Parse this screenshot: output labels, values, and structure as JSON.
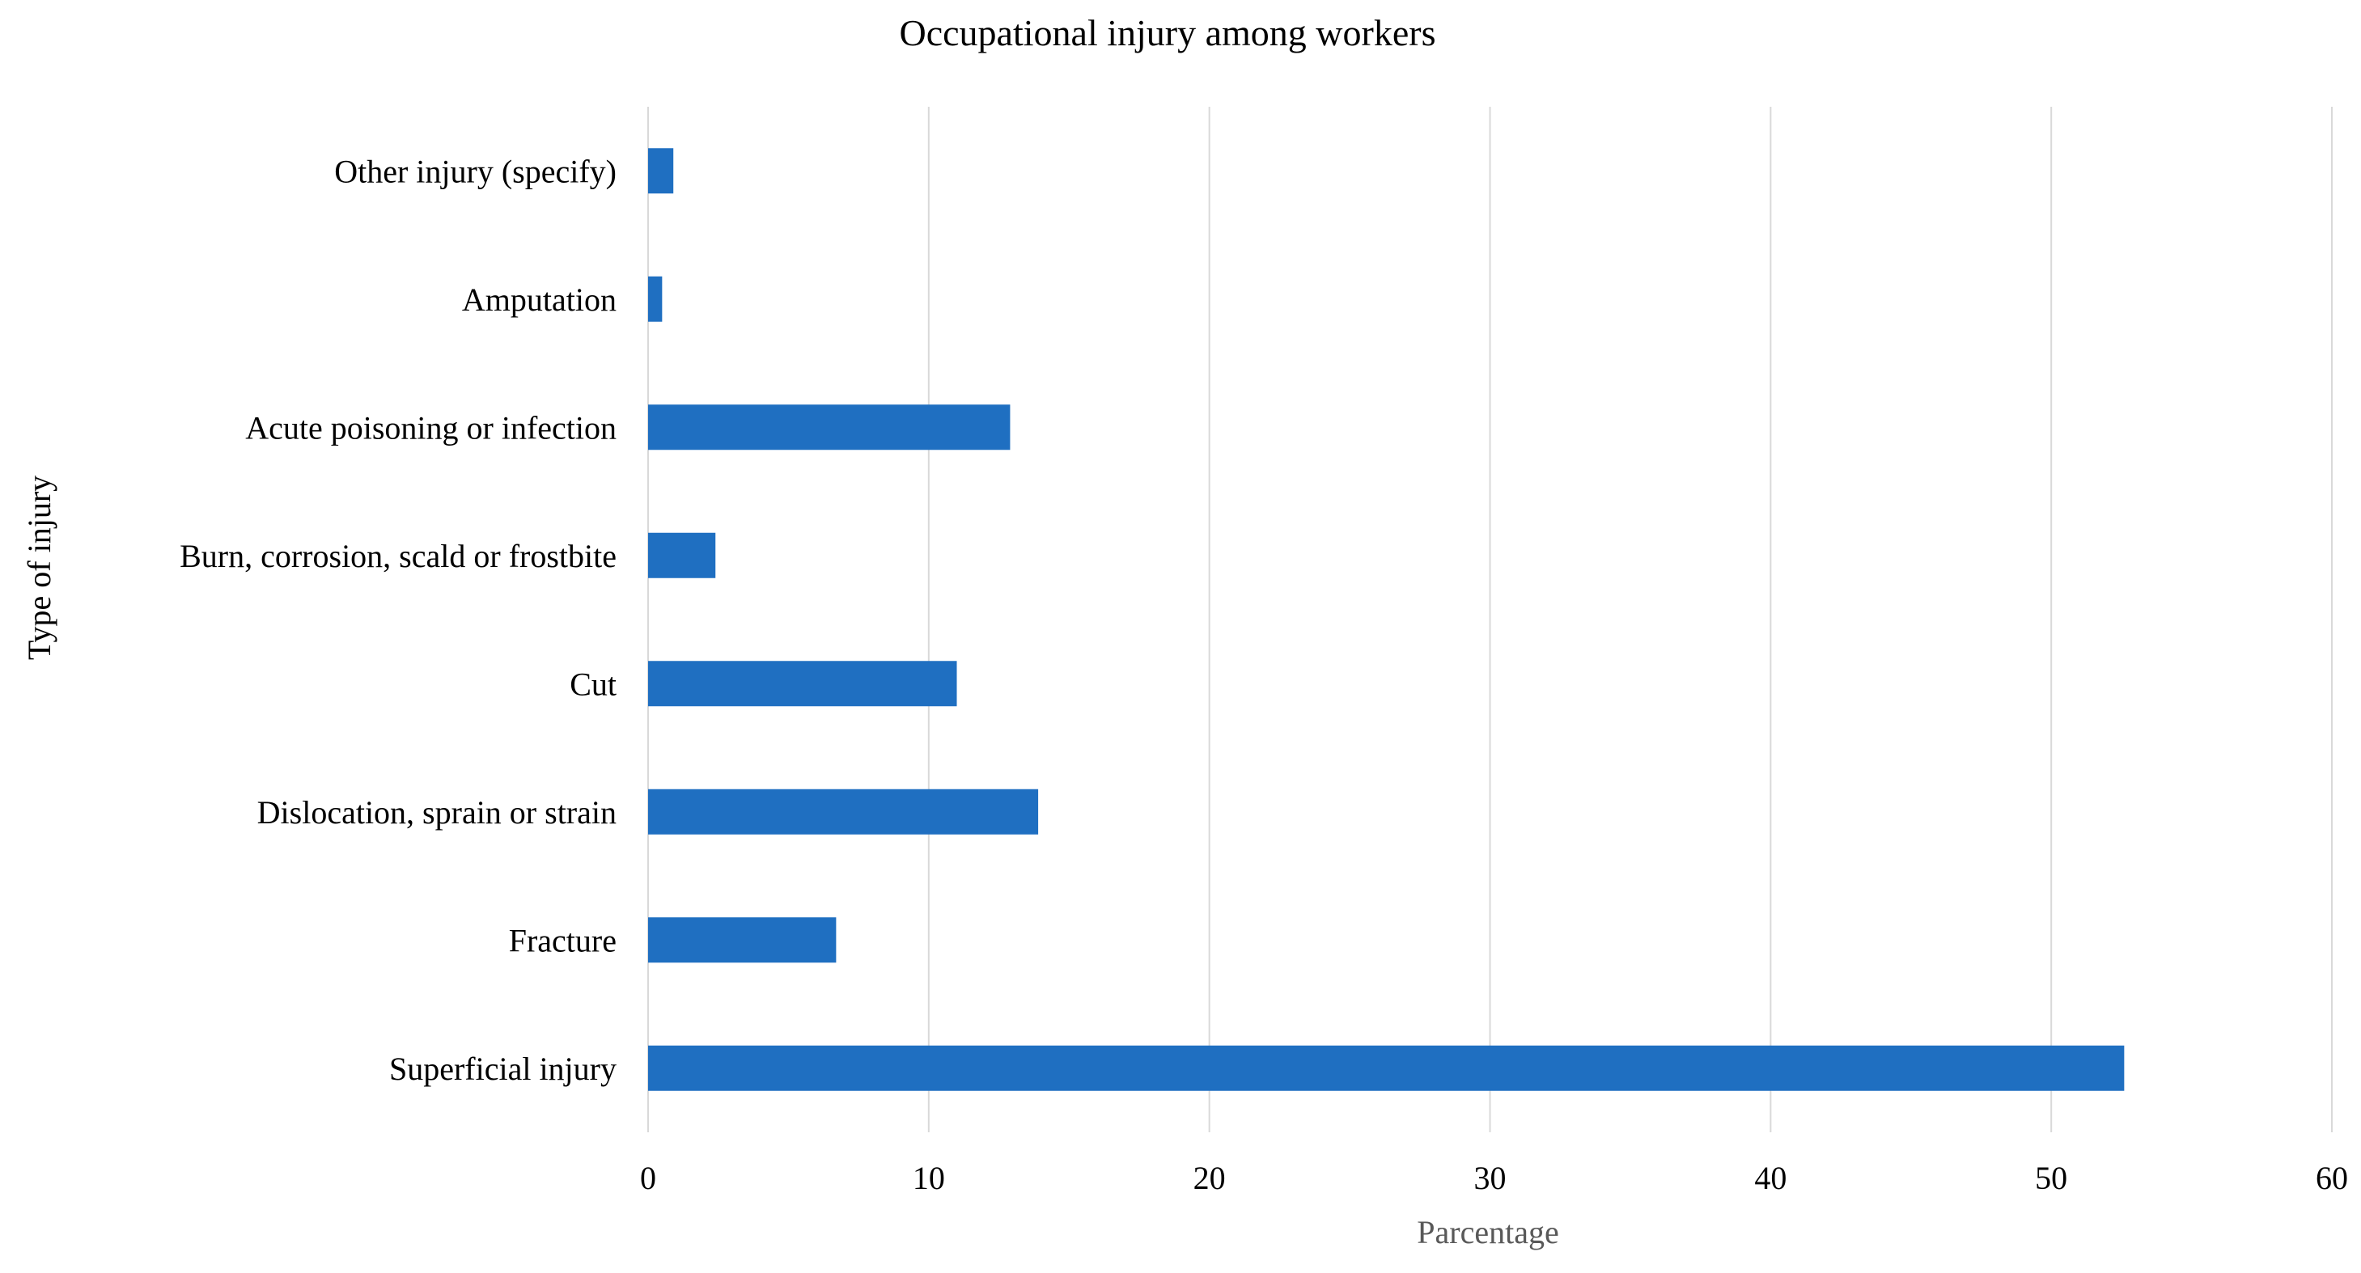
{
  "chart_data": {
    "type": "bar",
    "orientation": "horizontal",
    "title": "Occupational injury among workers",
    "xlabel": "Parcentage",
    "ylabel": "Type of injury",
    "categories": [
      "Other injury (specify)",
      "Amputation",
      "Acute poisoning or infection",
      "Burn, corrosion, scald or frostbite",
      "Cut",
      "Dislocation, sprain or strain",
      "Fracture",
      "Superficial injury"
    ],
    "values": [
      0.9,
      0.5,
      12.9,
      2.4,
      11.0,
      13.9,
      6.7,
      52.6
    ],
    "xlim": [
      0,
      60
    ],
    "xticks": [
      0,
      10,
      20,
      30,
      40,
      50,
      60
    ],
    "grid": true,
    "legend": "none",
    "bar_color": "#1f6fc1"
  }
}
